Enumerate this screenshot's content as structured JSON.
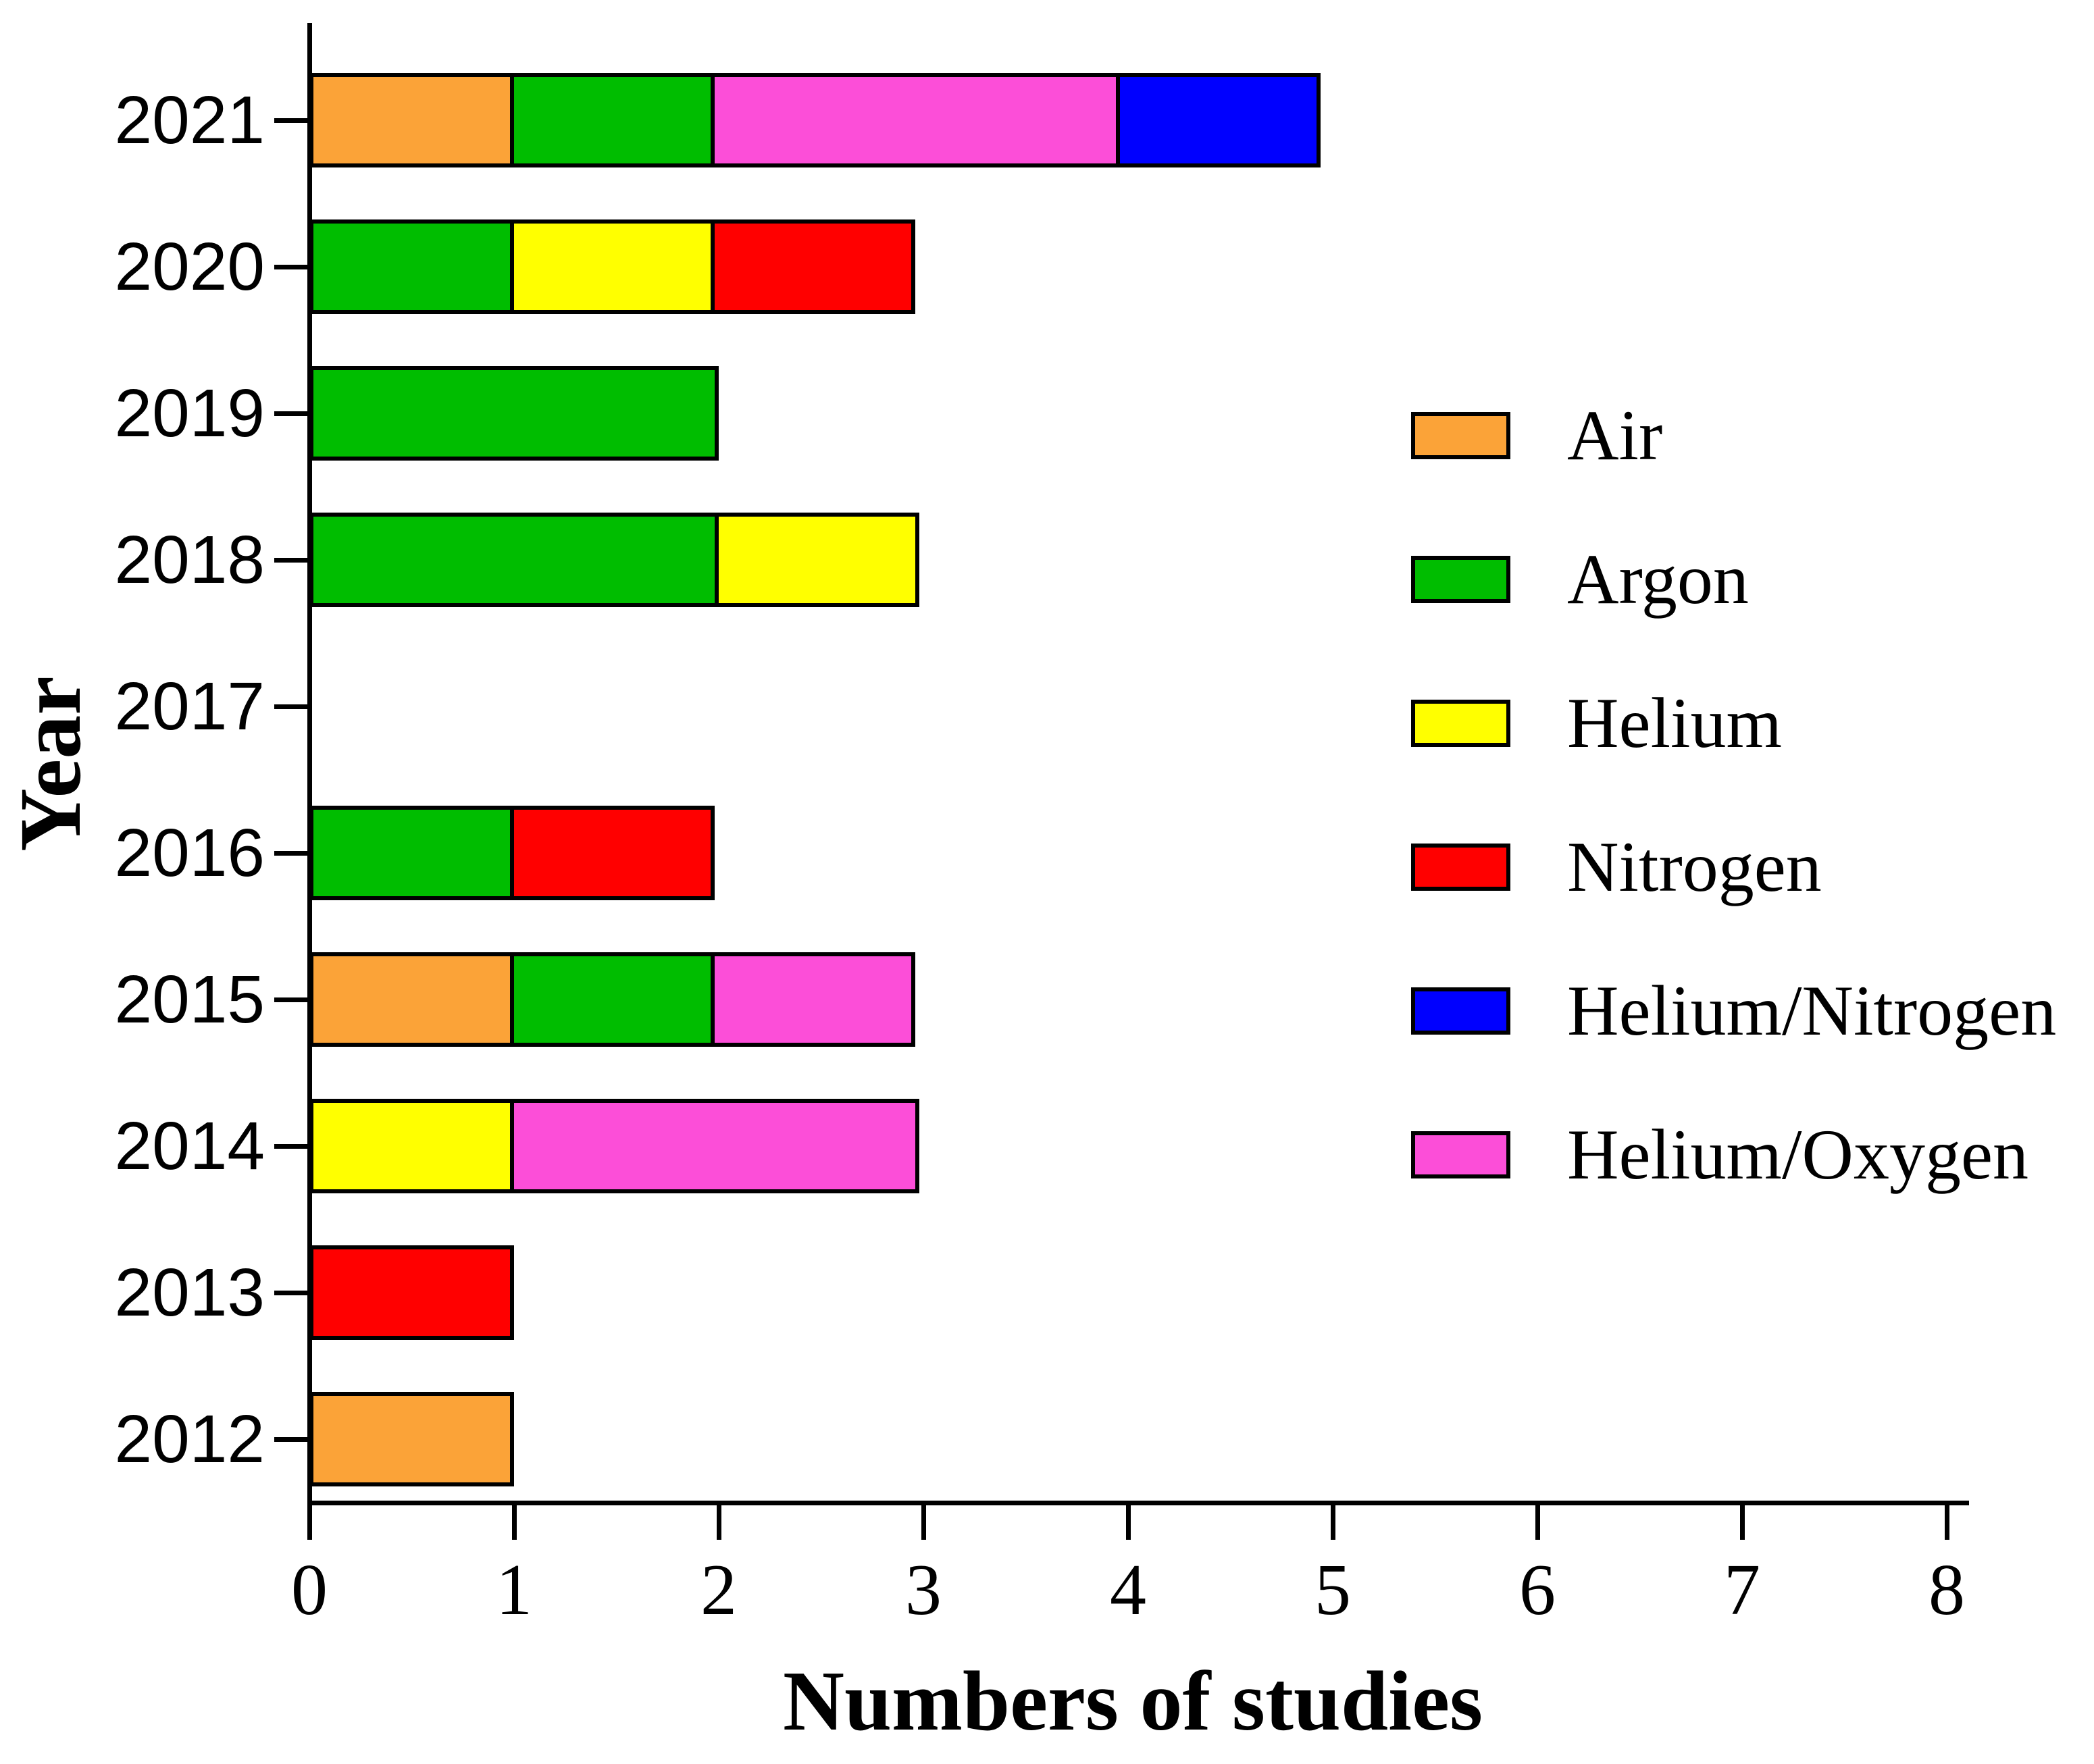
{
  "figure_type": "horizontal-stacked-bar-chart",
  "chart_data": {
    "type": "bar",
    "orientation": "horizontal-stacked",
    "title": "",
    "xlabel": "Numbers of studies",
    "ylabel": "Year",
    "xlim": [
      0,
      8
    ],
    "x_ticks": [
      "0",
      "1",
      "2",
      "3",
      "4",
      "5",
      "6",
      "7",
      "8"
    ],
    "grid": false,
    "legend_position": "right",
    "categories": [
      "2021",
      "2020",
      "2019",
      "2018",
      "2017",
      "2016",
      "2015",
      "2014",
      "2013",
      "2012"
    ],
    "series": [
      {
        "name": "Air",
        "color": "#FBA338",
        "values": [
          1,
          0,
          0,
          0,
          0,
          0,
          1,
          0,
          0,
          1
        ]
      },
      {
        "name": "Argon",
        "color": "#00BD00",
        "values": [
          1,
          1,
          2,
          2,
          0,
          1,
          1,
          0,
          0,
          0
        ]
      },
      {
        "name": "Helium",
        "color": "#FFFF00",
        "values": [
          0,
          1,
          0,
          1,
          0,
          0,
          0,
          1,
          0,
          0
        ]
      },
      {
        "name": "Nitrogen",
        "color": "#FF0000",
        "values": [
          0,
          1,
          0,
          0,
          0,
          1,
          0,
          0,
          1,
          0
        ]
      },
      {
        "name": "Helium/Nitrogen",
        "color": "#0000FF",
        "values": [
          1,
          0,
          0,
          0,
          0,
          0,
          0,
          0,
          0,
          0
        ]
      },
      {
        "name": "Helium/Oxygen",
        "color": "#FC4ED8",
        "values": [
          2,
          0,
          0,
          0,
          0,
          0,
          1,
          2,
          0,
          0
        ]
      }
    ],
    "bars": [
      {
        "year": "2021",
        "total": 5,
        "segments": [
          {
            "gas": "Air",
            "value": 1
          },
          {
            "gas": "Argon",
            "value": 1
          },
          {
            "gas": "Helium/Oxygen",
            "value": 2
          },
          {
            "gas": "Helium/Nitrogen",
            "value": 1
          }
        ]
      },
      {
        "year": "2020",
        "total": 3,
        "segments": [
          {
            "gas": "Argon",
            "value": 1
          },
          {
            "gas": "Helium",
            "value": 1
          },
          {
            "gas": "Nitrogen",
            "value": 1
          }
        ]
      },
      {
        "year": "2019",
        "total": 2,
        "segments": [
          {
            "gas": "Argon",
            "value": 2
          }
        ]
      },
      {
        "year": "2018",
        "total": 3,
        "segments": [
          {
            "gas": "Argon",
            "value": 2
          },
          {
            "gas": "Helium",
            "value": 1
          }
        ]
      },
      {
        "year": "2017",
        "total": 0,
        "segments": []
      },
      {
        "year": "2016",
        "total": 2,
        "segments": [
          {
            "gas": "Argon",
            "value": 1
          },
          {
            "gas": "Nitrogen",
            "value": 1
          }
        ]
      },
      {
        "year": "2015",
        "total": 3,
        "segments": [
          {
            "gas": "Air",
            "value": 1
          },
          {
            "gas": "Argon",
            "value": 1
          },
          {
            "gas": "Helium/Oxygen",
            "value": 1
          }
        ]
      },
      {
        "year": "2014",
        "total": 3,
        "segments": [
          {
            "gas": "Helium",
            "value": 1
          },
          {
            "gas": "Helium/Oxygen",
            "value": 2
          }
        ]
      },
      {
        "year": "2013",
        "total": 1,
        "segments": [
          {
            "gas": "Nitrogen",
            "value": 1
          }
        ]
      },
      {
        "year": "2012",
        "total": 1,
        "segments": [
          {
            "gas": "Air",
            "value": 1
          }
        ]
      }
    ],
    "legend": [
      "Air",
      "Argon",
      "Helium",
      "Nitrogen",
      "Helium/Nitrogen",
      "Helium/Oxygen"
    ],
    "bar_outline_color": "#000000",
    "axis_color": "#000000",
    "background_color": "#FFFFFF"
  }
}
